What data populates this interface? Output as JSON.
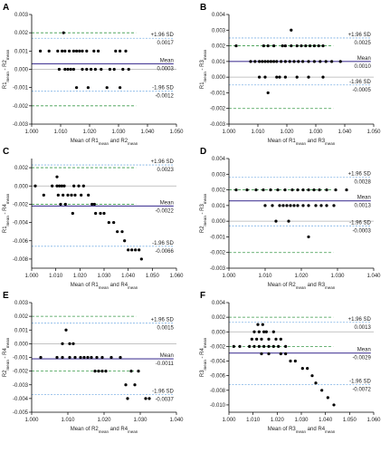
{
  "colors": {
    "mean_line": "#4b3f99",
    "sd_line": "#7fb2e5",
    "limit_line": "#3a9a4a",
    "zero_line": "#b0b0b0",
    "point": "#000000"
  },
  "chart_data": [
    {
      "type": "scatter",
      "letter": "A",
      "ylabel": {
        "a": "R1",
        "a_sub": "mean",
        "sep": " - ",
        "b": "R2",
        "b_sub": "mean"
      },
      "xlabel": {
        "pre": "Mean of ",
        "a": "R1",
        "a_sub": "mean",
        "mid": " and ",
        "b": "R2",
        "b_sub": "mean"
      },
      "xlim": [
        1.0,
        1.05
      ],
      "ylim": [
        -0.003,
        0.003
      ],
      "xticks": [
        "1.000",
        "1.010",
        "1.020",
        "1.030",
        "1.040",
        "1.050"
      ],
      "yticks": [
        "-0.003",
        "-0.002",
        "-0.001",
        "0.000",
        "0.001",
        "0.002",
        "0.003"
      ],
      "limits": [
        -0.002,
        0.002
      ],
      "mean": 0.0003,
      "upper": 0.0017,
      "lower": -0.0012,
      "upper_label": "+1.96 SD",
      "upper_value": "0.0017",
      "mean_label": "Mean",
      "mean_value": "0.0003",
      "lower_label": "-1.96 SD",
      "lower_value": "-0.0012",
      "points": [
        [
          1.011,
          0.002
        ],
        [
          1.003,
          0.001
        ],
        [
          1.006,
          0.001
        ],
        [
          1.009,
          0.001
        ],
        [
          1.0105,
          0.001
        ],
        [
          1.0115,
          0.001
        ],
        [
          1.013,
          0.001
        ],
        [
          1.0145,
          0.001
        ],
        [
          1.0155,
          0.001
        ],
        [
          1.0165,
          0.001
        ],
        [
          1.0175,
          0.001
        ],
        [
          1.019,
          0.001
        ],
        [
          1.0215,
          0.001
        ],
        [
          1.023,
          0.001
        ],
        [
          1.029,
          0.001
        ],
        [
          1.0305,
          0.001
        ],
        [
          1.0325,
          0.001
        ],
        [
          1.0095,
          0.0
        ],
        [
          1.0115,
          0.0
        ],
        [
          1.0125,
          0.0
        ],
        [
          1.0135,
          0.0
        ],
        [
          1.0145,
          0.0
        ],
        [
          1.0175,
          0.0
        ],
        [
          1.019,
          0.0
        ],
        [
          1.0205,
          0.0
        ],
        [
          1.022,
          0.0
        ],
        [
          1.024,
          0.0
        ],
        [
          1.027,
          0.0
        ],
        [
          1.0285,
          0.0
        ],
        [
          1.0315,
          0.0
        ],
        [
          1.0335,
          0.0
        ],
        [
          1.0155,
          -0.001
        ],
        [
          1.0195,
          -0.001
        ],
        [
          1.026,
          -0.001
        ],
        [
          1.0305,
          -0.001
        ]
      ]
    },
    {
      "type": "scatter",
      "letter": "B",
      "ylabel": {
        "a": "R1",
        "a_sub": "mean",
        "sep": " - ",
        "b": "R3",
        "b_sub": "mean"
      },
      "xlabel": {
        "pre": "Mean of ",
        "a": "R1",
        "a_sub": "mean",
        "mid": " and ",
        "b": "R3",
        "b_sub": "mean"
      },
      "xlim": [
        1.0,
        1.05
      ],
      "ylim": [
        -0.003,
        0.004
      ],
      "xticks": [
        "1.000",
        "1.010",
        "1.020",
        "1.030",
        "1.040",
        "1.050"
      ],
      "yticks": [
        "-0.003",
        "-0.002",
        "-0.001",
        "0.000",
        "0.001",
        "0.002",
        "0.003",
        "0.004"
      ],
      "limits": [
        -0.002,
        0.002
      ],
      "mean": 0.001,
      "upper": 0.0025,
      "lower": -0.0005,
      "upper_label": "+1.96 SD",
      "upper_value": "0.0025",
      "mean_label": "Mean",
      "mean_value": "0.0010",
      "lower_label": "-1.96 SD",
      "lower_value": "-0.0005",
      "points": [
        [
          1.0215,
          0.003
        ],
        [
          1.0025,
          0.002
        ],
        [
          1.012,
          0.002
        ],
        [
          1.0135,
          0.002
        ],
        [
          1.0155,
          0.002
        ],
        [
          1.0185,
          0.002
        ],
        [
          1.0195,
          0.002
        ],
        [
          1.0215,
          0.002
        ],
        [
          1.0235,
          0.002
        ],
        [
          1.025,
          0.002
        ],
        [
          1.0265,
          0.002
        ],
        [
          1.028,
          0.002
        ],
        [
          1.0295,
          0.002
        ],
        [
          1.031,
          0.002
        ],
        [
          1.0325,
          0.002
        ],
        [
          1.0075,
          0.001
        ],
        [
          1.009,
          0.001
        ],
        [
          1.0105,
          0.001
        ],
        [
          1.0115,
          0.001
        ],
        [
          1.0125,
          0.001
        ],
        [
          1.0135,
          0.001
        ],
        [
          1.0145,
          0.001
        ],
        [
          1.0155,
          0.001
        ],
        [
          1.0165,
          0.001
        ],
        [
          1.018,
          0.001
        ],
        [
          1.0195,
          0.001
        ],
        [
          1.021,
          0.001
        ],
        [
          1.0225,
          0.001
        ],
        [
          1.024,
          0.001
        ],
        [
          1.0255,
          0.001
        ],
        [
          1.0275,
          0.001
        ],
        [
          1.0295,
          0.001
        ],
        [
          1.0315,
          0.001
        ],
        [
          1.0335,
          0.001
        ],
        [
          1.0355,
          0.001
        ],
        [
          1.0385,
          0.001
        ],
        [
          1.0105,
          0.0
        ],
        [
          1.0125,
          0.0
        ],
        [
          1.0165,
          0.0
        ],
        [
          1.0175,
          0.0
        ],
        [
          1.0195,
          0.0
        ],
        [
          1.0235,
          0.0
        ],
        [
          1.0275,
          0.0
        ],
        [
          1.0325,
          0.0
        ],
        [
          1.0135,
          -0.001
        ]
      ]
    },
    {
      "type": "scatter",
      "letter": "C",
      "ylabel": {
        "a": "R1",
        "a_sub": "mean",
        "sep": " - ",
        "b": "R4",
        "b_sub": "mean"
      },
      "xlabel": {
        "pre": "Mean of ",
        "a": "R1",
        "a_sub": "mean",
        "mid": " and ",
        "b": "R4",
        "b_sub": "mean"
      },
      "xlim": [
        1.0,
        1.06
      ],
      "ylim": [
        -0.009,
        0.003
      ],
      "xticks": [
        "1.000",
        "1.010",
        "1.020",
        "1.030",
        "1.040",
        "1.050",
        "1.060"
      ],
      "yticks": [
        "-0.008",
        "-0.006",
        "-0.004",
        "-0.002",
        "0.000",
        "0.002"
      ],
      "limits": [
        -0.002,
        0.002
      ],
      "mean": -0.0022,
      "upper": 0.0023,
      "lower": -0.0066,
      "upper_label": "+1.96 SD",
      "upper_value": "0.0023",
      "mean_label": "Mean",
      "mean_value": "-0.0022",
      "lower_label": "-1.96 SD",
      "lower_value": "-0.0066",
      "points": [
        [
          1.0105,
          0.001
        ],
        [
          1.0015,
          0.0
        ],
        [
          1.0085,
          0.0
        ],
        [
          1.0105,
          0.0
        ],
        [
          1.0115,
          0.0
        ],
        [
          1.0125,
          0.0
        ],
        [
          1.0135,
          0.0
        ],
        [
          1.0175,
          0.0
        ],
        [
          1.0195,
          0.0
        ],
        [
          1.0215,
          0.0
        ],
        [
          1.005,
          -0.001
        ],
        [
          1.011,
          -0.001
        ],
        [
          1.013,
          -0.001
        ],
        [
          1.015,
          -0.001
        ],
        [
          1.0165,
          -0.001
        ],
        [
          1.018,
          -0.001
        ],
        [
          1.0205,
          -0.001
        ],
        [
          1.0235,
          -0.001
        ],
        [
          1.012,
          -0.002
        ],
        [
          1.014,
          -0.002
        ],
        [
          1.025,
          -0.002
        ],
        [
          1.026,
          -0.002
        ],
        [
          1.017,
          -0.003
        ],
        [
          1.0265,
          -0.003
        ],
        [
          1.0285,
          -0.003
        ],
        [
          1.03,
          -0.003
        ],
        [
          1.032,
          -0.004
        ],
        [
          1.034,
          -0.004
        ],
        [
          1.0355,
          -0.005
        ],
        [
          1.0375,
          -0.005
        ],
        [
          1.0385,
          -0.006
        ],
        [
          1.04,
          -0.007
        ],
        [
          1.0415,
          -0.007
        ],
        [
          1.043,
          -0.007
        ],
        [
          1.0445,
          -0.007
        ],
        [
          1.0455,
          -0.008
        ]
      ]
    },
    {
      "type": "scatter",
      "letter": "D",
      "ylabel": {
        "a": "R2",
        "a_sub": "mean",
        "sep": " - ",
        "b": "R3",
        "b_sub": "mean"
      },
      "xlabel": {
        "pre": "Mean of ",
        "a": "R2",
        "a_sub": "mean",
        "mid": " and ",
        "b": "R3",
        "b_sub": "mean"
      },
      "xlim": [
        1.0,
        1.04
      ],
      "ylim": [
        -0.003,
        0.004
      ],
      "xticks": [
        "1.000",
        "1.010",
        "1.020",
        "1.030",
        "1.040"
      ],
      "yticks": [
        "-0.003",
        "-0.002",
        "-0.001",
        "0.000",
        "0.001",
        "0.002",
        "0.003",
        "0.004"
      ],
      "limits": [
        -0.002,
        0.002
      ],
      "mean": 0.0013,
      "upper": 0.0028,
      "lower": -0.0003,
      "upper_label": "+1.96 SD",
      "upper_value": "0.0028",
      "mean_label": "Mean",
      "mean_value": "0.0013",
      "lower_label": "-1.96 SD",
      "lower_value": "-0.0003",
      "points": [
        [
          1.002,
          0.002
        ],
        [
          1.005,
          0.002
        ],
        [
          1.0075,
          0.002
        ],
        [
          1.0095,
          0.002
        ],
        [
          1.0115,
          0.002
        ],
        [
          1.0135,
          0.002
        ],
        [
          1.0155,
          0.002
        ],
        [
          1.0175,
          0.002
        ],
        [
          1.019,
          0.002
        ],
        [
          1.0205,
          0.002
        ],
        [
          1.022,
          0.002
        ],
        [
          1.0235,
          0.002
        ],
        [
          1.025,
          0.002
        ],
        [
          1.027,
          0.002
        ],
        [
          1.0295,
          0.002
        ],
        [
          1.0325,
          0.002
        ],
        [
          1.01,
          0.001
        ],
        [
          1.012,
          0.001
        ],
        [
          1.014,
          0.001
        ],
        [
          1.015,
          0.001
        ],
        [
          1.016,
          0.001
        ],
        [
          1.017,
          0.001
        ],
        [
          1.018,
          0.001
        ],
        [
          1.019,
          0.001
        ],
        [
          1.0205,
          0.001
        ],
        [
          1.022,
          0.001
        ],
        [
          1.024,
          0.001
        ],
        [
          1.0255,
          0.001
        ],
        [
          1.027,
          0.001
        ],
        [
          1.029,
          0.001
        ],
        [
          1.013,
          0.0
        ],
        [
          1.0165,
          0.0
        ],
        [
          1.022,
          -0.001
        ]
      ]
    },
    {
      "type": "scatter",
      "letter": "E",
      "ylabel": {
        "a": "R2",
        "a_sub": "mean",
        "sep": " - ",
        "b": "R4",
        "b_sub": "mean"
      },
      "xlabel": {
        "pre": "Mean of ",
        "a": "R2",
        "a_sub": "mean",
        "mid": " and ",
        "b": "R4",
        "b_sub": "mean"
      },
      "xlim": [
        1.0,
        1.04
      ],
      "ylim": [
        -0.005,
        0.003
      ],
      "xticks": [
        "1.000",
        "1.010",
        "1.020",
        "1.030",
        "1.040"
      ],
      "yticks": [
        "-0.005",
        "-0.004",
        "-0.003",
        "-0.002",
        "-0.001",
        "0.000",
        "0.001",
        "0.002",
        "0.003"
      ],
      "limits": [
        -0.002,
        0.002
      ],
      "mean": -0.0011,
      "upper": 0.0015,
      "lower": -0.0037,
      "upper_label": "+1.96 SD",
      "upper_value": "0.0015",
      "mean_label": "Mean",
      "mean_value": "-0.0011",
      "lower_label": "-1.96 SD",
      "lower_value": "-0.0037",
      "points": [
        [
          1.0095,
          0.001
        ],
        [
          1.0085,
          0.0
        ],
        [
          1.0105,
          0.0
        ],
        [
          1.0115,
          0.0
        ],
        [
          1.0025,
          -0.001
        ],
        [
          1.007,
          -0.001
        ],
        [
          1.0085,
          -0.001
        ],
        [
          1.0105,
          -0.001
        ],
        [
          1.012,
          -0.001
        ],
        [
          1.0135,
          -0.001
        ],
        [
          1.0145,
          -0.001
        ],
        [
          1.0155,
          -0.001
        ],
        [
          1.0165,
          -0.001
        ],
        [
          1.018,
          -0.001
        ],
        [
          1.0195,
          -0.001
        ],
        [
          1.022,
          -0.001
        ],
        [
          1.0245,
          -0.001
        ],
        [
          1.0175,
          -0.002
        ],
        [
          1.0185,
          -0.002
        ],
        [
          1.0195,
          -0.002
        ],
        [
          1.0205,
          -0.002
        ],
        [
          1.0275,
          -0.002
        ],
        [
          1.0295,
          -0.002
        ],
        [
          1.026,
          -0.003
        ],
        [
          1.0285,
          -0.003
        ],
        [
          1.0265,
          -0.004
        ],
        [
          1.0315,
          -0.004
        ],
        [
          1.0325,
          -0.004
        ]
      ]
    },
    {
      "type": "scatter",
      "letter": "F",
      "ylabel": {
        "a": "R3",
        "a_sub": "mean",
        "sep": " - ",
        "b": "R4",
        "b_sub": "mean"
      },
      "xlabel": {
        "pre": "Mean of ",
        "a": "R3",
        "a_sub": "mean",
        "mid": " and ",
        "b": "R4",
        "b_sub": "mean"
      },
      "xlim": [
        1.0,
        1.06
      ],
      "ylim": [
        -0.011,
        0.004
      ],
      "xticks": [
        "1.000",
        "1.010",
        "1.020",
        "1.030",
        "1.040",
        "1.050",
        "1.060"
      ],
      "yticks": [
        "-0.010",
        "-0.008",
        "-0.006",
        "-0.004",
        "-0.002",
        "0.000",
        "0.002",
        "0.004"
      ],
      "limits": [
        -0.002,
        0.002
      ],
      "mean": -0.0029,
      "upper": 0.0013,
      "lower": -0.0072,
      "upper_label": "+1.96 SD",
      "upper_value": "0.0013",
      "mean_label": "Mean",
      "mean_value": "-0.0029",
      "lower_label": "-1.96 SD",
      "lower_value": "-0.0072",
      "points": [
        [
          1.012,
          0.001
        ],
        [
          1.014,
          0.001
        ],
        [
          1.0105,
          0.0
        ],
        [
          1.0125,
          0.0
        ],
        [
          1.0145,
          0.0
        ],
        [
          1.0155,
          0.0
        ],
        [
          1.0185,
          0.0
        ],
        [
          1.0095,
          -0.001
        ],
        [
          1.0115,
          -0.001
        ],
        [
          1.0135,
          -0.001
        ],
        [
          1.0165,
          -0.001
        ],
        [
          1.0195,
          -0.001
        ],
        [
          1.0215,
          -0.001
        ],
        [
          1.002,
          -0.002
        ],
        [
          1.0045,
          -0.002
        ],
        [
          1.0085,
          -0.002
        ],
        [
          1.0105,
          -0.002
        ],
        [
          1.0125,
          -0.002
        ],
        [
          1.0145,
          -0.002
        ],
        [
          1.0165,
          -0.002
        ],
        [
          1.0185,
          -0.002
        ],
        [
          1.0205,
          -0.002
        ],
        [
          1.0235,
          -0.002
        ],
        [
          1.0135,
          -0.003
        ],
        [
          1.0165,
          -0.003
        ],
        [
          1.0215,
          -0.003
        ],
        [
          1.0235,
          -0.003
        ],
        [
          1.0255,
          -0.004
        ],
        [
          1.0275,
          -0.004
        ],
        [
          1.0305,
          -0.005
        ],
        [
          1.0325,
          -0.005
        ],
        [
          1.0345,
          -0.006
        ],
        [
          1.036,
          -0.007
        ],
        [
          1.0385,
          -0.008
        ],
        [
          1.041,
          -0.009
        ],
        [
          1.0435,
          -0.01
        ]
      ]
    }
  ]
}
